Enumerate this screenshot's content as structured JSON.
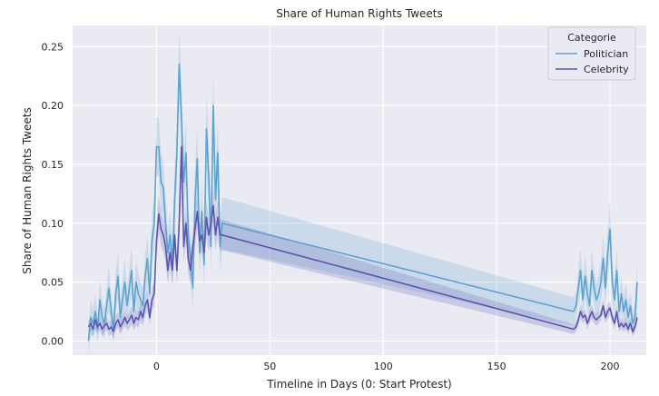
{
  "chart_data": {
    "type": "line",
    "title": "Share of Human Rights Tweets",
    "xlabel": "Timeline in Days (0: Start Protest)",
    "ylabel": "Share of Human Rights Tweets",
    "xlim": [
      -37,
      216
    ],
    "ylim": [
      -0.012,
      0.268
    ],
    "x_ticks": [
      0,
      50,
      100,
      150,
      200
    ],
    "y_ticks": [
      0.0,
      0.05,
      0.1,
      0.15,
      0.2,
      0.25
    ],
    "x_tick_labels": [
      "0",
      "50",
      "100",
      "150",
      "200"
    ],
    "y_tick_labels": [
      "0.00",
      "0.05",
      "0.10",
      "0.15",
      "0.20",
      "0.25"
    ],
    "grid": true,
    "legend": {
      "title": "Categorie",
      "placement": "top-right"
    },
    "series": [
      {
        "name": "Politician",
        "color": "#5ba3cf",
        "x": [
          -30,
          -29,
          -28,
          -27,
          -26,
          -25,
          -24,
          -23,
          -22,
          -21,
          -20,
          -19,
          -18,
          -17,
          -16,
          -15,
          -14,
          -13,
          -12,
          -11,
          -10,
          -9,
          -8,
          -7,
          -6,
          -5,
          -4,
          -3,
          -2,
          -1,
          0,
          1,
          2,
          3,
          4,
          5,
          6,
          7,
          8,
          9,
          10,
          11,
          12,
          13,
          14,
          15,
          16,
          17,
          18,
          19,
          20,
          21,
          22,
          23,
          24,
          25,
          26,
          27,
          28,
          29,
          184,
          185,
          186,
          187,
          188,
          189,
          190,
          191,
          192,
          193,
          194,
          195,
          196,
          197,
          198,
          199,
          200,
          201,
          202,
          203,
          204,
          205,
          206,
          207,
          208,
          209,
          210,
          211,
          212
        ],
        "y": [
          0.0,
          0.02,
          0.015,
          0.025,
          0.01,
          0.035,
          0.02,
          0.015,
          0.03,
          0.045,
          0.025,
          0.01,
          0.04,
          0.055,
          0.02,
          0.035,
          0.05,
          0.03,
          0.045,
          0.06,
          0.025,
          0.05,
          0.04,
          0.035,
          0.03,
          0.055,
          0.07,
          0.04,
          0.085,
          0.1,
          0.165,
          0.165,
          0.135,
          0.13,
          0.1,
          0.075,
          0.09,
          0.065,
          0.12,
          0.16,
          0.235,
          0.19,
          0.135,
          0.16,
          0.09,
          0.07,
          0.045,
          0.12,
          0.155,
          0.075,
          0.11,
          0.065,
          0.18,
          0.14,
          0.08,
          0.2,
          0.12,
          0.16,
          0.08,
          0.1,
          0.025,
          0.03,
          0.045,
          0.06,
          0.035,
          0.055,
          0.04,
          0.03,
          0.06,
          0.045,
          0.035,
          0.04,
          0.05,
          0.07,
          0.045,
          0.075,
          0.095,
          0.05,
          0.035,
          0.06,
          0.025,
          0.04,
          0.025,
          0.035,
          0.02,
          0.03,
          0.015,
          0.02,
          0.05
        ],
        "ci": [
          0.012,
          0.015,
          0.012,
          0.015,
          0.012,
          0.018,
          0.015,
          0.012,
          0.015,
          0.02,
          0.015,
          0.012,
          0.018,
          0.02,
          0.015,
          0.018,
          0.02,
          0.015,
          0.018,
          0.02,
          0.015,
          0.018,
          0.018,
          0.015,
          0.015,
          0.018,
          0.02,
          0.018,
          0.022,
          0.022,
          0.025,
          0.025,
          0.025,
          0.022,
          0.022,
          0.02,
          0.02,
          0.02,
          0.025,
          0.028,
          0.03,
          0.028,
          0.025,
          0.028,
          0.022,
          0.02,
          0.018,
          0.025,
          0.028,
          0.02,
          0.025,
          0.02,
          0.03,
          0.028,
          0.02,
          0.03,
          0.025,
          0.028,
          0.02,
          0.022,
          0.012,
          0.012,
          0.015,
          0.018,
          0.015,
          0.018,
          0.015,
          0.015,
          0.018,
          0.015,
          0.015,
          0.015,
          0.018,
          0.02,
          0.015,
          0.02,
          0.025,
          0.018,
          0.015,
          0.018,
          0.012,
          0.015,
          0.012,
          0.015,
          0.012,
          0.012,
          0.01,
          0.012,
          0.018
        ]
      },
      {
        "name": "Celebrity",
        "color": "#5a56b0",
        "x": [
          -30,
          -29,
          -28,
          -27,
          -26,
          -25,
          -24,
          -23,
          -22,
          -21,
          -20,
          -19,
          -18,
          -17,
          -16,
          -15,
          -14,
          -13,
          -12,
          -11,
          -10,
          -9,
          -8,
          -7,
          -6,
          -5,
          -4,
          -3,
          -2,
          -1,
          0,
          1,
          2,
          3,
          4,
          5,
          6,
          7,
          8,
          9,
          10,
          11,
          12,
          13,
          14,
          15,
          16,
          17,
          18,
          19,
          20,
          21,
          22,
          23,
          24,
          25,
          26,
          27,
          28,
          29,
          184,
          185,
          186,
          187,
          188,
          189,
          190,
          191,
          192,
          193,
          194,
          195,
          196,
          197,
          198,
          199,
          200,
          201,
          202,
          203,
          204,
          205,
          206,
          207,
          208,
          209,
          210,
          211,
          212
        ],
        "y": [
          0.012,
          0.015,
          0.01,
          0.018,
          0.012,
          0.015,
          0.01,
          0.013,
          0.015,
          0.01,
          0.012,
          0.008,
          0.015,
          0.018,
          0.012,
          0.015,
          0.02,
          0.015,
          0.018,
          0.022,
          0.015,
          0.02,
          0.018,
          0.025,
          0.02,
          0.03,
          0.035,
          0.02,
          0.035,
          0.04,
          0.085,
          0.108,
          0.095,
          0.09,
          0.08,
          0.06,
          0.075,
          0.06,
          0.09,
          0.06,
          0.1,
          0.165,
          0.08,
          0.1,
          0.07,
          0.06,
          0.08,
          0.095,
          0.11,
          0.085,
          0.09,
          0.075,
          0.105,
          0.09,
          0.1,
          0.115,
          0.09,
          0.105,
          0.09,
          0.09,
          0.01,
          0.012,
          0.018,
          0.025,
          0.02,
          0.022,
          0.015,
          0.02,
          0.025,
          0.02,
          0.018,
          0.02,
          0.022,
          0.03,
          0.02,
          0.025,
          0.028,
          0.02,
          0.015,
          0.025,
          0.012,
          0.015,
          0.012,
          0.015,
          0.01,
          0.015,
          0.008,
          0.012,
          0.02
        ],
        "ci": [
          0.006,
          0.006,
          0.006,
          0.007,
          0.006,
          0.006,
          0.006,
          0.006,
          0.006,
          0.006,
          0.006,
          0.006,
          0.006,
          0.007,
          0.006,
          0.006,
          0.007,
          0.006,
          0.007,
          0.008,
          0.006,
          0.007,
          0.007,
          0.008,
          0.007,
          0.008,
          0.009,
          0.007,
          0.009,
          0.01,
          0.015,
          0.016,
          0.015,
          0.014,
          0.013,
          0.012,
          0.012,
          0.012,
          0.014,
          0.012,
          0.016,
          0.02,
          0.014,
          0.015,
          0.013,
          0.012,
          0.013,
          0.014,
          0.015,
          0.013,
          0.014,
          0.013,
          0.015,
          0.014,
          0.014,
          0.016,
          0.014,
          0.015,
          0.013,
          0.013,
          0.004,
          0.004,
          0.005,
          0.006,
          0.005,
          0.005,
          0.005,
          0.005,
          0.006,
          0.005,
          0.005,
          0.005,
          0.005,
          0.006,
          0.005,
          0.006,
          0.006,
          0.005,
          0.005,
          0.006,
          0.004,
          0.005,
          0.004,
          0.005,
          0.004,
          0.005,
          0.004,
          0.004,
          0.005
        ]
      }
    ]
  }
}
